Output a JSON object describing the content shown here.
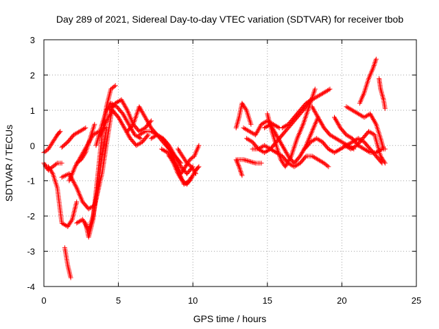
{
  "chart_data": {
    "type": "scatter",
    "title": "Day 289 of 2021, Sidereal Day-to-day VTEC variation (SDTVAR) for receiver tbob",
    "xlabel": "GPS time / hours",
    "ylabel": "SDTVAR / TECUs",
    "xlim": [
      0,
      25
    ],
    "ylim": [
      -4,
      3
    ],
    "xticks": [
      "0",
      "5",
      "10",
      "15",
      "20",
      "25"
    ],
    "yticks": [
      "-4",
      "-3",
      "-2",
      "-1",
      "0",
      "1",
      "2",
      "3"
    ],
    "grid": true,
    "marker": "+",
    "color": "#ff0000",
    "series": [
      {
        "name": "s1",
        "x": [
          0.0,
          0.3,
          0.6,
          0.9,
          1.1
        ],
        "y": [
          -0.2,
          -0.1,
          0.1,
          0.3,
          0.4
        ]
      },
      {
        "name": "s2",
        "x": [
          0.0,
          0.3,
          0.6,
          0.9,
          1.2
        ],
        "y": [
          -0.5,
          -0.7,
          -0.6,
          -0.5,
          -0.5
        ]
      },
      {
        "name": "s3",
        "x": [
          0.1,
          0.3,
          0.6,
          0.9,
          1.2,
          1.6,
          1.9,
          2.2
        ],
        "y": [
          -0.6,
          -0.6,
          -0.8,
          -1.2,
          -2.2,
          -2.3,
          -2.1,
          -1.6
        ]
      },
      {
        "name": "s4",
        "x": [
          1.4,
          1.6,
          1.8
        ],
        "y": [
          -2.9,
          -3.4,
          -3.75
        ]
      },
      {
        "name": "s5",
        "x": [
          1.2,
          1.6,
          2.0,
          2.4,
          2.8
        ],
        "y": [
          -0.05,
          0.1,
          0.3,
          0.4,
          0.5
        ]
      },
      {
        "name": "s6",
        "x": [
          1.2,
          1.7,
          2.2,
          2.6,
          3.0,
          3.4,
          3.9,
          4.3,
          4.6
        ],
        "y": [
          -0.9,
          -0.8,
          -1.2,
          -1.6,
          -1.8,
          -1.7,
          -0.8,
          0.3,
          1.1
        ]
      },
      {
        "name": "s7",
        "x": [
          1.7,
          2.1,
          2.5,
          2.9,
          3.3,
          3.7
        ],
        "y": [
          -1.0,
          -0.6,
          -0.3,
          0.0,
          0.3,
          0.4
        ]
      },
      {
        "name": "s8",
        "x": [
          2.2,
          2.6,
          3.0,
          3.3,
          3.6,
          3.9,
          4.2
        ],
        "y": [
          -2.2,
          -2.1,
          -2.4,
          -2.0,
          -1.3,
          -0.3,
          0.5
        ]
      },
      {
        "name": "s9",
        "x": [
          2.2,
          2.5,
          2.8,
          3.1,
          3.4
        ],
        "y": [
          -0.5,
          -0.4,
          -0.2,
          0.2,
          0.6
        ]
      },
      {
        "name": "s10",
        "x": [
          2.8,
          3.0,
          3.3,
          3.6,
          3.9,
          4.2,
          4.5,
          4.8
        ],
        "y": [
          -2.2,
          -2.6,
          -2.1,
          -0.9,
          0.3,
          1.1,
          1.6,
          1.7
        ]
      },
      {
        "name": "s11",
        "x": [
          3.5,
          3.9,
          4.2,
          4.5,
          4.9,
          5.3,
          5.7,
          6.1,
          6.5
        ],
        "y": [
          0.0,
          0.6,
          1.0,
          1.2,
          1.1,
          0.9,
          0.6,
          0.3,
          0.2
        ]
      },
      {
        "name": "s12",
        "x": [
          3.8,
          4.2,
          4.6,
          5.0,
          5.4,
          5.8,
          6.2,
          6.6,
          7.0
        ],
        "y": [
          0.3,
          0.7,
          1.0,
          0.8,
          0.5,
          0.2,
          0.0,
          0.1,
          0.3
        ]
      },
      {
        "name": "s13",
        "x": [
          4.4,
          4.8,
          5.2,
          5.6,
          6.0,
          6.4,
          6.8,
          7.2
        ],
        "y": [
          1.0,
          1.2,
          1.3,
          1.0,
          0.6,
          0.4,
          0.5,
          0.7
        ]
      },
      {
        "name": "s14",
        "x": [
          5.6,
          6.0,
          6.4,
          6.8,
          7.2,
          7.6,
          8.0,
          8.4,
          8.8,
          9.2
        ],
        "y": [
          0.4,
          0.6,
          1.1,
          0.8,
          0.5,
          0.3,
          0.1,
          -0.1,
          -0.3,
          -0.5
        ]
      },
      {
        "name": "s15",
        "x": [
          6.4,
          6.8,
          7.2,
          7.6,
          8.0,
          8.4,
          8.8,
          9.2,
          9.6,
          10.0
        ],
        "y": [
          0.3,
          0.4,
          0.4,
          0.3,
          0.2,
          0.0,
          -0.3,
          -0.6,
          -0.8,
          -0.6
        ]
      },
      {
        "name": "s16",
        "x": [
          7.2,
          7.6,
          8.0,
          8.4,
          8.8,
          9.2,
          9.5,
          9.8,
          10.1,
          10.4
        ],
        "y": [
          0.2,
          0.3,
          0.2,
          -0.1,
          -0.5,
          -0.8,
          -0.6,
          -0.4,
          -0.3,
          0.0
        ]
      },
      {
        "name": "s17",
        "x": [
          7.9,
          8.3,
          8.7,
          9.0,
          9.3,
          9.6,
          9.9
        ],
        "y": [
          -0.1,
          -0.2,
          -0.5,
          -0.8,
          -1.0,
          -1.1,
          -0.9
        ]
      },
      {
        "name": "s18",
        "x": [
          8.4,
          8.7,
          9.0,
          9.4,
          9.8,
          10.2,
          10.4
        ],
        "y": [
          -0.3,
          -0.4,
          -0.7,
          -1.1,
          -1.0,
          -0.7,
          -0.6
        ]
      },
      {
        "name": "s19",
        "x": [
          9.0,
          9.3,
          9.6,
          9.9,
          10.2
        ],
        "y": [
          -0.1,
          -0.3,
          -0.5,
          -0.6,
          -0.8
        ]
      },
      {
        "name": "s20",
        "x": [
          12.9,
          13.1,
          13.3,
          13.6,
          13.9
        ],
        "y": [
          0.5,
          0.8,
          1.2,
          1.0,
          0.6
        ]
      },
      {
        "name": "s21",
        "x": [
          12.9,
          13.1,
          13.3
        ],
        "y": [
          -0.4,
          -0.6,
          -0.85
        ]
      },
      {
        "name": "s22",
        "x": [
          13.0,
          13.4,
          13.8,
          14.2,
          14.6
        ],
        "y": [
          -0.4,
          -0.4,
          -0.45,
          -0.5,
          -0.5
        ]
      },
      {
        "name": "s23",
        "x": [
          13.4,
          13.8,
          14.2,
          14.6,
          15.0,
          15.4,
          15.8
        ],
        "y": [
          0.5,
          0.4,
          0.3,
          0.6,
          0.7,
          0.6,
          0.5
        ]
      },
      {
        "name": "s24",
        "x": [
          13.6,
          14.0,
          14.4,
          14.8,
          15.2,
          15.6,
          16.0,
          16.4,
          16.8,
          17.2,
          17.6,
          17.9
        ],
        "y": [
          0.2,
          0.1,
          -0.1,
          -0.2,
          -0.1,
          0.1,
          0.3,
          0.5,
          0.7,
          0.9,
          1.1,
          1.3
        ]
      },
      {
        "name": "s25",
        "x": [
          14.0,
          14.4,
          14.8,
          15.2,
          15.6,
          16.0,
          16.4,
          16.8,
          17.2,
          17.6,
          18.0,
          18.4,
          18.8,
          19.1
        ],
        "y": [
          -0.1,
          -0.1,
          0.0,
          -0.1,
          -0.2,
          -0.3,
          -0.5,
          -0.6,
          -0.5,
          -0.3,
          -0.3,
          -0.4,
          -0.5,
          -0.6
        ]
      },
      {
        "name": "s26",
        "x": [
          15.0,
          15.3,
          15.6,
          15.9,
          16.2,
          16.6,
          17.0,
          17.4,
          17.8,
          18.2
        ],
        "y": [
          0.9,
          0.4,
          0.0,
          -0.4,
          -0.6,
          -0.3,
          0.2,
          0.6,
          1.1,
          1.6
        ]
      },
      {
        "name": "s27",
        "x": [
          14.8,
          15.2,
          15.6,
          16.0,
          16.4,
          16.8,
          17.2,
          17.6,
          18.0,
          18.4
        ],
        "y": [
          0.5,
          0.6,
          0.3,
          0.0,
          -0.3,
          -0.5,
          -0.3,
          0.0,
          0.4,
          0.8
        ]
      },
      {
        "name": "s28",
        "x": [
          16.0,
          16.4,
          16.8,
          17.2,
          17.6,
          18.0,
          18.4,
          18.8,
          19.2
        ],
        "y": [
          0.5,
          0.6,
          0.8,
          1.0,
          1.2,
          1.3,
          1.4,
          1.5,
          1.6
        ]
      },
      {
        "name": "s29",
        "x": [
          18.0,
          18.4,
          18.8,
          19.2,
          19.6,
          20.0,
          20.4,
          20.8
        ],
        "y": [
          1.1,
          0.8,
          0.5,
          0.3,
          0.2,
          0.1,
          0.0,
          -0.1
        ]
      },
      {
        "name": "s30",
        "x": [
          17.5,
          17.9,
          18.3,
          18.7,
          19.1,
          19.5,
          19.9,
          20.3,
          20.7,
          21.1,
          21.5,
          21.9,
          22.3,
          22.7
        ],
        "y": [
          -0.1,
          0.1,
          0.2,
          0.1,
          -0.1,
          -0.2,
          -0.1,
          0.0,
          0.1,
          0.2,
          0.1,
          -0.1,
          -0.3,
          -0.5
        ]
      },
      {
        "name": "s31",
        "x": [
          19.5,
          19.9,
          20.3,
          20.7,
          21.1,
          21.5,
          21.9,
          22.3,
          22.7,
          22.9
        ],
        "y": [
          0.8,
          0.5,
          0.3,
          0.2,
          0.0,
          -0.1,
          -0.2,
          -0.2,
          -0.1,
          -0.1
        ]
      },
      {
        "name": "s32",
        "x": [
          20.2,
          20.6,
          21.0,
          21.4,
          21.8,
          22.2,
          22.6,
          22.9
        ],
        "y": [
          0.0,
          -0.1,
          0.0,
          0.2,
          0.4,
          0.3,
          -0.3,
          -0.5
        ]
      },
      {
        "name": "s33",
        "x": [
          20.3,
          20.7,
          21.1,
          21.5,
          21.9,
          22.3,
          22.6,
          22.8
        ],
        "y": [
          1.1,
          1.0,
          0.9,
          0.8,
          0.9,
          0.6,
          0.2,
          -0.1
        ]
      },
      {
        "name": "s34",
        "x": [
          21.2,
          21.5,
          21.8,
          22.1,
          22.3
        ],
        "y": [
          1.2,
          1.5,
          1.9,
          2.2,
          2.45
        ]
      },
      {
        "name": "s35",
        "x": [
          22.5,
          22.6,
          22.8,
          22.9
        ],
        "y": [
          1.9,
          1.6,
          1.3,
          1.05
        ]
      }
    ]
  }
}
